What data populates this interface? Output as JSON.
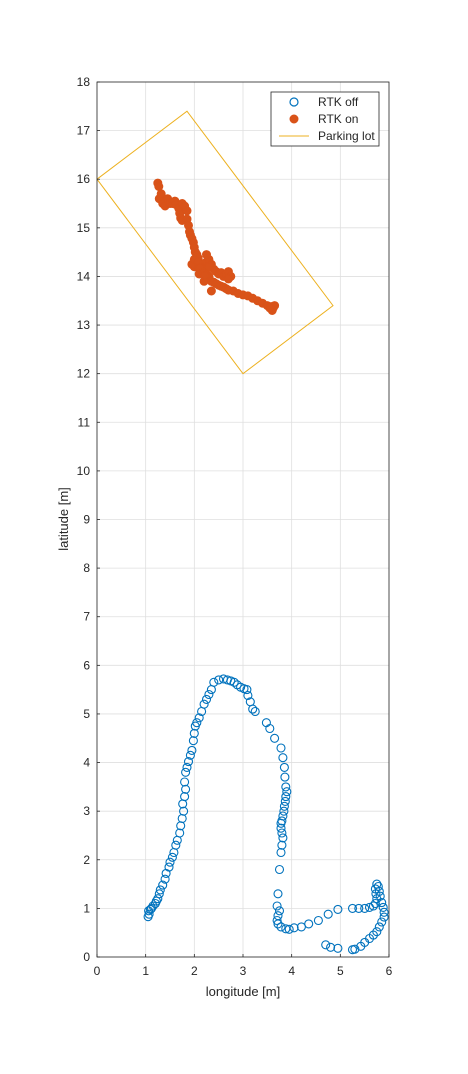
{
  "chart_data": {
    "type": "scatter",
    "xlabel": "longitude [m]",
    "ylabel": "latitude [m]",
    "xlim": [
      0,
      6
    ],
    "ylim": [
      0,
      18
    ],
    "xticks": [
      "0",
      "1",
      "2",
      "3",
      "4",
      "5",
      "6"
    ],
    "yticks": [
      "0",
      "1",
      "2",
      "3",
      "4",
      "5",
      "6",
      "7",
      "8",
      "9",
      "10",
      "11",
      "12",
      "13",
      "14",
      "15",
      "16",
      "17",
      "18"
    ],
    "grid": true,
    "legend_position": "top-right",
    "series": [
      {
        "name": "RTK off",
        "marker": "open-circle",
        "color": "#0072BD",
        "points": [
          [
            1.05,
            0.83
          ],
          [
            1.07,
            0.88
          ],
          [
            1.06,
            0.95
          ],
          [
            1.1,
            0.98
          ],
          [
            1.12,
            1.0
          ],
          [
            1.15,
            1.05
          ],
          [
            1.2,
            1.1
          ],
          [
            1.22,
            1.15
          ],
          [
            1.25,
            1.2
          ],
          [
            1.28,
            1.3
          ],
          [
            1.3,
            1.38
          ],
          [
            1.35,
            1.48
          ],
          [
            1.4,
            1.6
          ],
          [
            1.42,
            1.72
          ],
          [
            1.48,
            1.85
          ],
          [
            1.5,
            1.95
          ],
          [
            1.55,
            2.05
          ],
          [
            1.58,
            2.15
          ],
          [
            1.62,
            2.3
          ],
          [
            1.65,
            2.4
          ],
          [
            1.7,
            2.55
          ],
          [
            1.72,
            2.7
          ],
          [
            1.75,
            2.85
          ],
          [
            1.78,
            3.0
          ],
          [
            1.76,
            3.15
          ],
          [
            1.8,
            3.3
          ],
          [
            1.82,
            3.45
          ],
          [
            1.8,
            3.6
          ],
          [
            1.82,
            3.8
          ],
          [
            1.85,
            3.9
          ],
          [
            1.88,
            4.02
          ],
          [
            1.92,
            4.15
          ],
          [
            1.95,
            4.25
          ],
          [
            1.98,
            4.45
          ],
          [
            2.0,
            4.6
          ],
          [
            2.02,
            4.75
          ],
          [
            2.05,
            4.82
          ],
          [
            2.1,
            4.92
          ],
          [
            2.15,
            5.05
          ],
          [
            2.2,
            5.2
          ],
          [
            2.25,
            5.3
          ],
          [
            2.3,
            5.4
          ],
          [
            2.35,
            5.5
          ],
          [
            2.4,
            5.65
          ],
          [
            2.5,
            5.7
          ],
          [
            2.6,
            5.72
          ],
          [
            2.68,
            5.7
          ],
          [
            2.75,
            5.68
          ],
          [
            2.82,
            5.65
          ],
          [
            2.88,
            5.6
          ],
          [
            2.95,
            5.55
          ],
          [
            3.02,
            5.52
          ],
          [
            3.08,
            5.5
          ],
          [
            3.1,
            5.38
          ],
          [
            3.15,
            5.25
          ],
          [
            3.2,
            5.1
          ],
          [
            3.25,
            5.05
          ],
          [
            3.48,
            4.82
          ],
          [
            3.55,
            4.7
          ],
          [
            3.65,
            4.5
          ],
          [
            3.78,
            4.3
          ],
          [
            3.82,
            4.1
          ],
          [
            3.85,
            3.9
          ],
          [
            3.86,
            3.7
          ],
          [
            3.88,
            3.5
          ],
          [
            3.9,
            3.4
          ],
          [
            3.88,
            3.3
          ],
          [
            3.87,
            3.2
          ],
          [
            3.85,
            3.1
          ],
          [
            3.84,
            3.0
          ],
          [
            3.82,
            2.9
          ],
          [
            3.8,
            2.8
          ],
          [
            3.78,
            2.75
          ],
          [
            3.78,
            2.65
          ],
          [
            3.8,
            2.55
          ],
          [
            3.82,
            2.45
          ],
          [
            3.8,
            2.3
          ],
          [
            3.78,
            2.15
          ],
          [
            3.75,
            1.8
          ],
          [
            3.72,
            1.3
          ],
          [
            3.7,
            1.05
          ],
          [
            3.75,
            0.95
          ],
          [
            3.72,
            0.85
          ],
          [
            3.7,
            0.75
          ],
          [
            3.72,
            0.68
          ],
          [
            3.78,
            0.62
          ],
          [
            3.88,
            0.58
          ],
          [
            3.95,
            0.57
          ],
          [
            4.05,
            0.6
          ],
          [
            4.2,
            0.62
          ],
          [
            4.35,
            0.68
          ],
          [
            4.55,
            0.75
          ],
          [
            4.75,
            0.88
          ],
          [
            4.95,
            0.98
          ],
          [
            5.25,
            1.0
          ],
          [
            5.38,
            1.0
          ],
          [
            5.5,
            1.0
          ],
          [
            5.6,
            1.02
          ],
          [
            5.68,
            1.05
          ],
          [
            5.72,
            1.1
          ],
          [
            5.75,
            1.2
          ],
          [
            5.73,
            1.3
          ],
          [
            5.72,
            1.4
          ],
          [
            5.75,
            1.5
          ],
          [
            5.78,
            1.45
          ],
          [
            5.8,
            1.35
          ],
          [
            5.82,
            1.25
          ],
          [
            5.85,
            1.12
          ],
          [
            5.88,
            1.02
          ],
          [
            5.9,
            0.92
          ],
          [
            5.9,
            0.82
          ],
          [
            5.85,
            0.72
          ],
          [
            5.8,
            0.62
          ],
          [
            5.75,
            0.52
          ],
          [
            5.68,
            0.45
          ],
          [
            5.6,
            0.38
          ],
          [
            5.5,
            0.3
          ],
          [
            5.42,
            0.22
          ],
          [
            5.3,
            0.16
          ],
          [
            5.25,
            0.15
          ],
          [
            4.95,
            0.18
          ],
          [
            4.8,
            0.2
          ],
          [
            4.7,
            0.25
          ]
        ]
      },
      {
        "name": "RTK on",
        "marker": "filled-circle",
        "color": "#D95319",
        "points": [
          [
            1.25,
            15.92
          ],
          [
            1.27,
            15.85
          ],
          [
            1.28,
            15.6
          ],
          [
            1.32,
            15.7
          ],
          [
            1.35,
            15.5
          ],
          [
            1.4,
            15.45
          ],
          [
            1.45,
            15.6
          ],
          [
            1.5,
            15.5
          ],
          [
            1.55,
            15.5
          ],
          [
            1.6,
            15.55
          ],
          [
            1.62,
            15.48
          ],
          [
            1.68,
            15.4
          ],
          [
            1.7,
            15.3
          ],
          [
            1.72,
            15.2
          ],
          [
            1.75,
            15.15
          ],
          [
            1.75,
            15.5
          ],
          [
            1.8,
            15.45
          ],
          [
            1.85,
            15.35
          ],
          [
            1.85,
            15.18
          ],
          [
            1.88,
            15.05
          ],
          [
            1.9,
            14.92
          ],
          [
            1.92,
            14.85
          ],
          [
            1.95,
            14.78
          ],
          [
            1.98,
            14.7
          ],
          [
            2.0,
            14.6
          ],
          [
            2.02,
            14.5
          ],
          [
            2.05,
            14.45
          ],
          [
            2.08,
            14.38
          ],
          [
            2.1,
            14.3
          ],
          [
            2.12,
            14.25
          ],
          [
            2.15,
            14.2
          ],
          [
            2.18,
            14.15
          ],
          [
            2.2,
            14.1
          ],
          [
            2.25,
            14.05
          ],
          [
            2.3,
            14.0
          ],
          [
            2.3,
            13.95
          ],
          [
            2.35,
            13.9
          ],
          [
            2.4,
            13.88
          ],
          [
            2.45,
            13.85
          ],
          [
            2.5,
            13.82
          ],
          [
            2.55,
            13.8
          ],
          [
            2.6,
            13.78
          ],
          [
            2.65,
            13.75
          ],
          [
            2.7,
            13.72
          ],
          [
            2.8,
            13.7
          ],
          [
            2.9,
            13.65
          ],
          [
            3.0,
            13.62
          ],
          [
            3.1,
            13.6
          ],
          [
            3.2,
            13.55
          ],
          [
            3.3,
            13.5
          ],
          [
            3.4,
            13.45
          ],
          [
            3.5,
            13.4
          ],
          [
            3.58,
            13.38
          ],
          [
            3.6,
            13.3
          ],
          [
            3.62,
            13.35
          ],
          [
            3.65,
            13.4
          ],
          [
            3.55,
            13.35
          ],
          [
            2.0,
            14.2
          ],
          [
            2.05,
            14.25
          ],
          [
            2.1,
            14.15
          ],
          [
            2.15,
            14.25
          ],
          [
            2.2,
            14.2
          ],
          [
            2.25,
            14.3
          ],
          [
            2.3,
            14.35
          ],
          [
            2.35,
            14.25
          ],
          [
            2.4,
            14.15
          ],
          [
            2.45,
            14.1
          ],
          [
            2.5,
            14.05
          ],
          [
            2.55,
            14.08
          ],
          [
            2.6,
            14.0
          ],
          [
            2.65,
            14.05
          ],
          [
            2.7,
            14.1
          ],
          [
            2.75,
            14.0
          ],
          [
            2.7,
            13.95
          ],
          [
            2.25,
            14.45
          ],
          [
            2.3,
            14.2
          ],
          [
            2.35,
            13.7
          ],
          [
            2.2,
            13.9
          ],
          [
            2.1,
            14.05
          ],
          [
            1.95,
            14.25
          ],
          [
            2.0,
            14.35
          ],
          [
            2.08,
            14.3
          ],
          [
            2.12,
            14.18
          ],
          [
            2.18,
            14.08
          ],
          [
            2.22,
            14.02
          ]
        ]
      },
      {
        "name": "Parking lot",
        "marker": "line",
        "color": "#EDB120",
        "points": [
          [
            0,
            16.0
          ],
          [
            1.85,
            17.4
          ],
          [
            4.85,
            13.4
          ],
          [
            3.0,
            12.0
          ],
          [
            0,
            16.0
          ]
        ]
      }
    ]
  }
}
